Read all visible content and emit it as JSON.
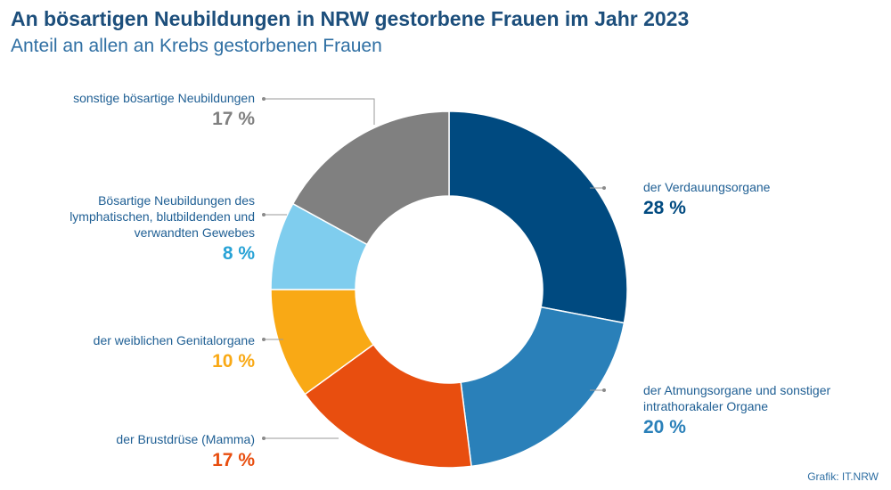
{
  "header": {
    "title": "An bösartigen Neubildungen in NRW gestorbene Frauen im Jahr 2023",
    "subtitle": "Anteil an allen an Krebs gestorbenen Frauen"
  },
  "source": "Grafik: IT.NRW",
  "chart_data": {
    "type": "pie",
    "donut": true,
    "title": "An bösartigen Neubildungen in NRW gestorbene Frauen im Jahr 2023",
    "subtitle": "Anteil an allen an Krebs gestorbenen Frauen",
    "unit": "%",
    "slices": [
      {
        "name": "der Verdauungsorgane",
        "value": 28,
        "label": "28 %",
        "color": "#004a80"
      },
      {
        "name": "der Atmungsorgane und sonstiger intrathorakaler Organe",
        "value": 20,
        "label": "20 %",
        "color": "#2a80b9"
      },
      {
        "name": "der Brustdrüse (Mamma)",
        "value": 17,
        "label": "17 %",
        "color": "#e84e0f"
      },
      {
        "name": "der weiblichen Genitalorgane",
        "value": 10,
        "label": "10 %",
        "color": "#f9a915"
      },
      {
        "name": "Bösartige Neubildungen des lymphatischen, blutbildenden und verwandten Gewebes",
        "value": 8,
        "label": "8 %",
        "color": "#7fcdee"
      },
      {
        "name": "sonstige bösartige Neubildungen",
        "value": 17,
        "label": "17 %",
        "color": "#808080"
      }
    ]
  }
}
